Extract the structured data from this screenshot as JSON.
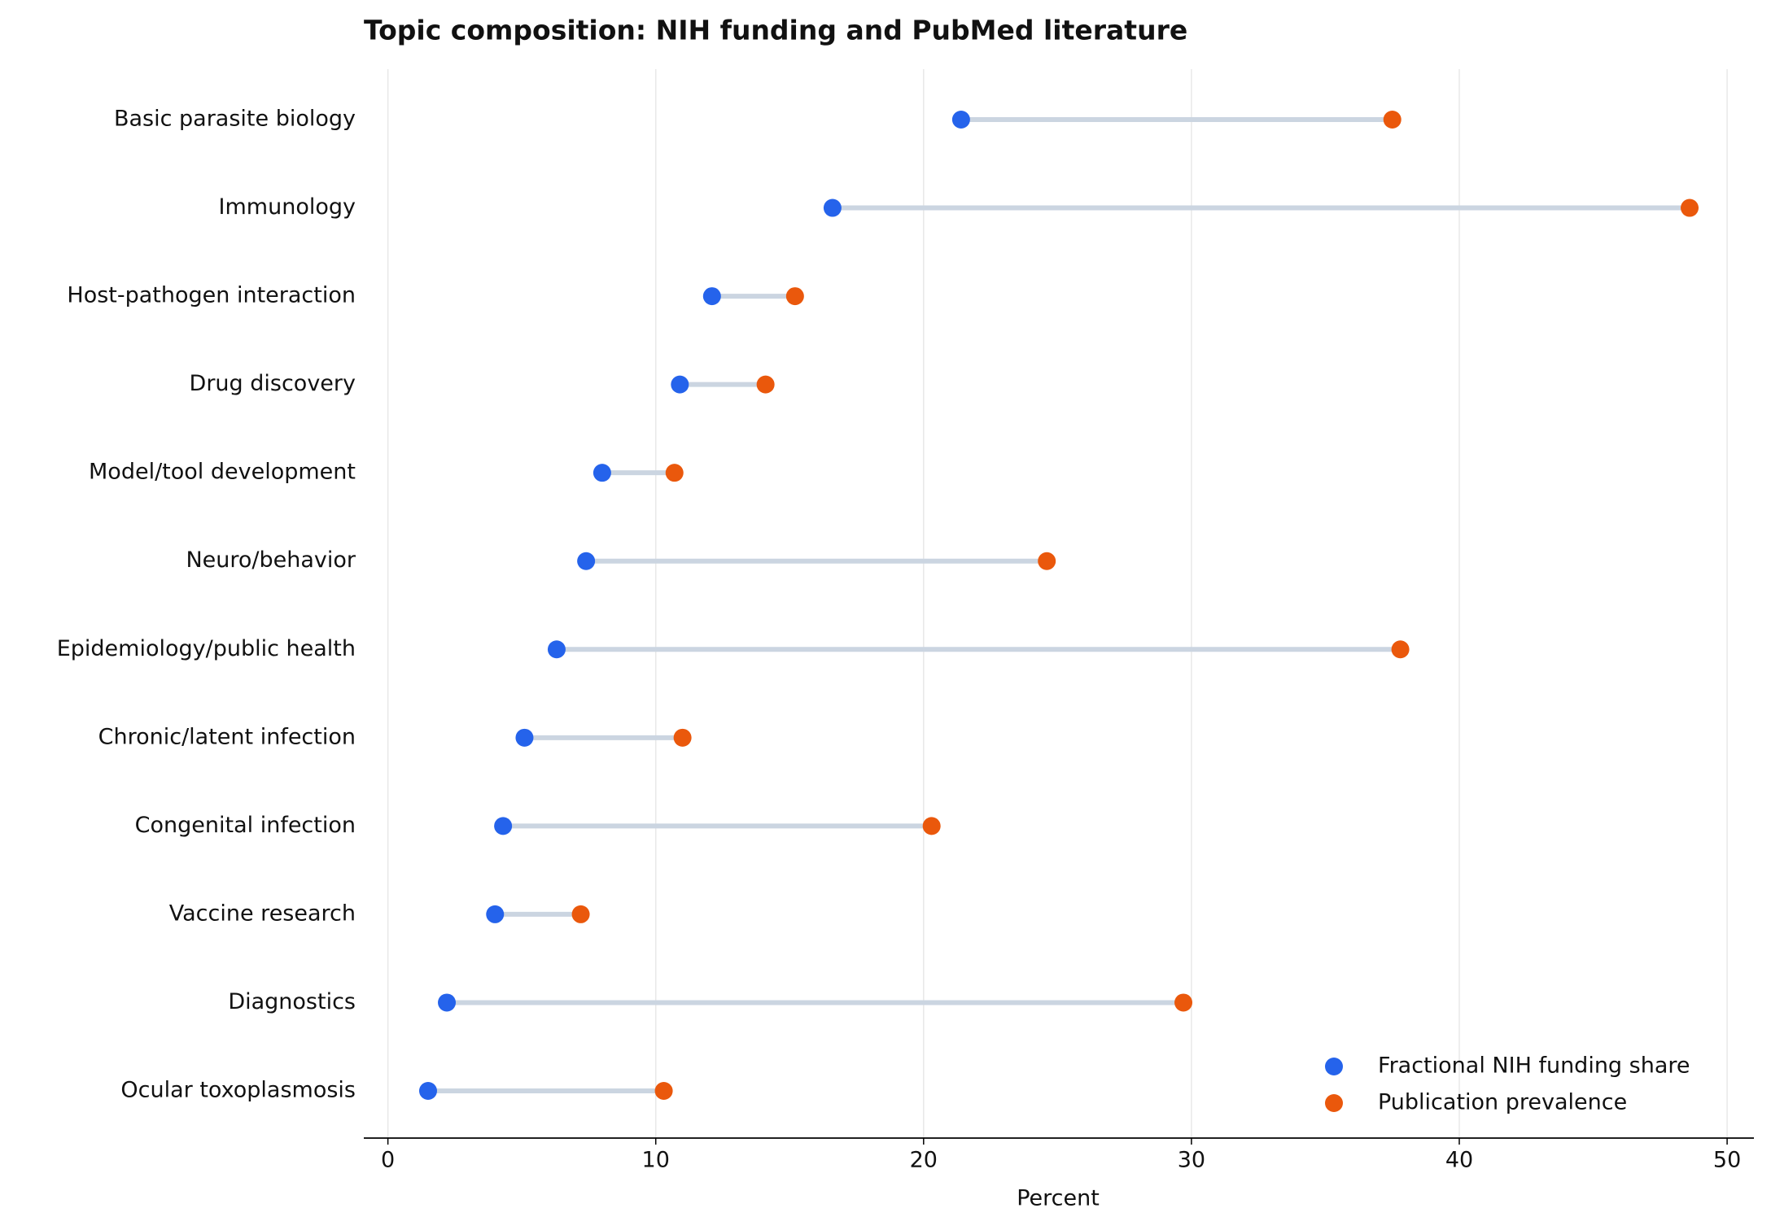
{
  "chart_data": {
    "type": "dumbbell",
    "title": "Topic composition: NIH funding and PubMed literature",
    "x_label": "Percent",
    "categories": [
      "Basic parasite biology",
      "Immunology",
      "Host-pathogen interaction",
      "Drug discovery",
      "Model/tool development",
      "Neuro/behavior",
      "Epidemiology/public health",
      "Chronic/latent infection",
      "Congenital infection",
      "Vaccine research",
      "Diagnostics",
      "Ocular toxoplasmosis"
    ],
    "series": [
      {
        "name": "Fractional NIH funding share",
        "color": "#2563eb",
        "values": [
          21.4,
          16.6,
          12.1,
          10.9,
          8.0,
          7.4,
          6.3,
          5.1,
          4.3,
          4.0,
          2.2,
          1.5
        ]
      },
      {
        "name": "Publication prevalence",
        "color": "#ea580c",
        "values": [
          37.5,
          48.6,
          15.2,
          14.1,
          10.7,
          24.6,
          37.8,
          11.0,
          20.3,
          7.2,
          29.7,
          10.3
        ]
      }
    ],
    "connector_color": "#cbd5e1",
    "xlim": [
      -0.9,
      51
    ],
    "xticks": [
      0,
      10,
      20,
      30,
      40,
      50
    ],
    "grid": true,
    "legend": "lower right"
  }
}
